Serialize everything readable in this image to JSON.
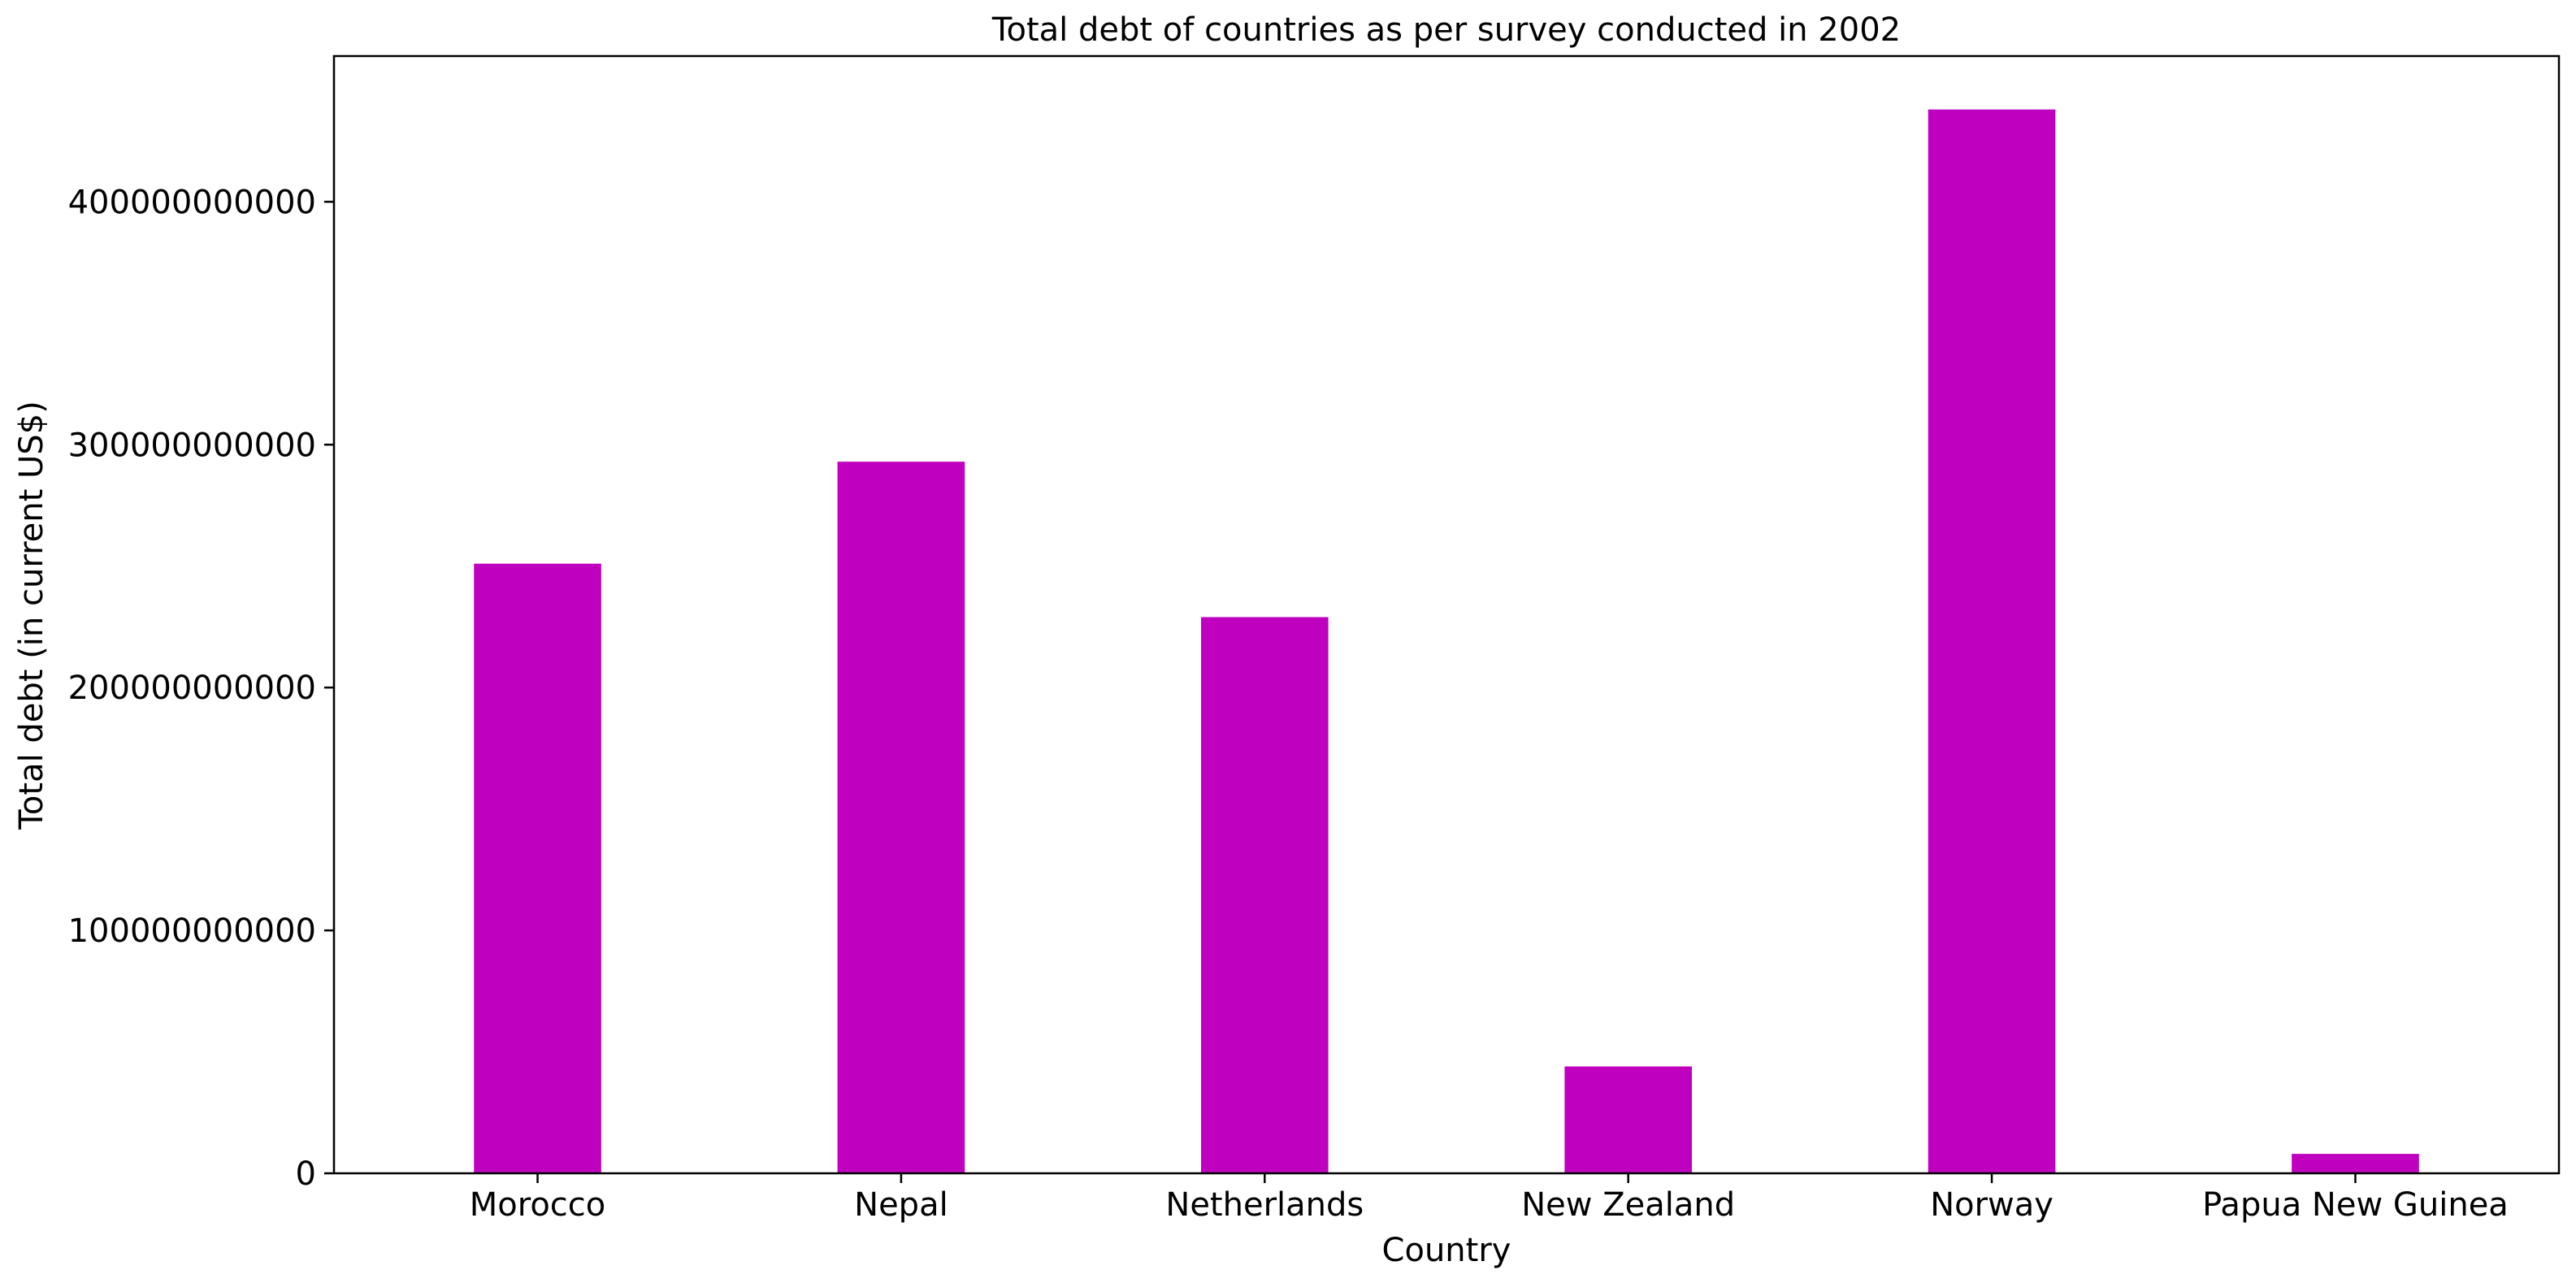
{
  "chart_data": {
    "type": "bar",
    "title": "Total debt of countries as per survey conducted in 2002",
    "xlabel": "Country",
    "ylabel": "Total debt (in current US$)",
    "categories": [
      "Morocco",
      "Nepal",
      "Netherlands",
      "New Zealand",
      "Norway",
      "Papua New Guinea"
    ],
    "values": [
      251000000000,
      293000000000,
      229000000000,
      44000000000,
      438000000000,
      8000000000
    ],
    "ylim": [
      0,
      460000000000
    ],
    "yticks": [
      0,
      100000000000,
      200000000000,
      300000000000,
      400000000000
    ],
    "ytick_labels": [
      "0",
      "100000000000",
      "200000000000",
      "300000000000",
      "400000000000"
    ],
    "bar_color": "#bf00bf",
    "grid": false,
    "legend": "none"
  }
}
